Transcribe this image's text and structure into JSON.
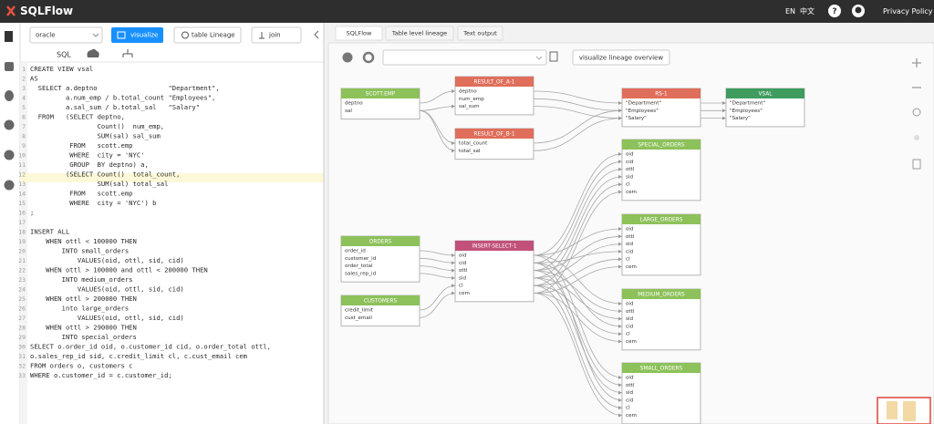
{
  "header": {
    "logo": "SQLFlow",
    "lang_en": "EN",
    "lang_zh": "中文",
    "privacy": "Privacy Policy"
  },
  "toolbar": {
    "db": "oracle",
    "visualize": "visualize",
    "table_lineage": "table Lineage",
    "join": "join",
    "sql_tab": "SQL"
  },
  "editor": {
    "line_numbers": [
      1,
      2,
      3,
      4,
      5,
      6,
      7,
      8,
      9,
      10,
      11,
      12,
      13,
      14,
      15,
      16,
      17,
      18,
      19,
      20,
      21,
      22,
      23,
      24,
      25,
      26,
      27,
      28,
      29,
      30,
      31,
      32,
      33
    ],
    "lines": [
      "CREATE VIEW vsal",
      "AS",
      "  SELECT a.deptno                  \"Department\",",
      "         a.num_emp / b.total_count \"Employees\",",
      "         a.sal_sum / b.total_sal   \"Salary\"",
      "  FROM   (SELECT deptno,",
      "                 Count()  num_emp,",
      "                 SUM(sal) sal_sum",
      "          FROM   scott.emp",
      "          WHERE  city = 'NYC'",
      "          GROUP  BY deptno) a,",
      "         (SELECT Count()  total_count,",
      "                 SUM(sal) total_sal",
      "          FROM   scott.emp",
      "          WHERE  city = 'NYC') b",
      ";",
      null,
      "INSERT ALL",
      "    WHEN ottl < 100000 THEN",
      "        INTO small_orders",
      "            VALUES(oid, ottl, sid, cid)",
      "    WHEN ottl > 100000 and ottl < 200000 THEN",
      "        INTO medium_orders",
      "            VALUES(oid, ottl, sid, cid)",
      "    WHEN ottl > 200000 THEN",
      "        into large_orders",
      "            VALUES(oid, ottl, sid, cid)",
      "    WHEN ottl > 290000 THEN",
      "        INTO special_orders",
      "SELECT o.order_id oid, o.customer_id cid, o.order_total ottl,",
      "o.sales_rep_id sid, c.credit_limit cl, c.cust_email cem",
      "FROM orders o, customers c",
      "WHERE o.customer_id = c.customer_id;"
    ]
  },
  "tabs": [
    "SQLFlow",
    "Table level lineage",
    "Text output"
  ],
  "graph_toolbar": {
    "overview": "visualize lineage overview"
  },
  "nodes": [
    {
      "label": "SCOTT.EMP",
      "columns": [
        "deptno",
        "sal"
      ]
    },
    {
      "label": "RESULT_OF_A-1",
      "columns": [
        "deptno",
        "num_emp",
        "sal_sum"
      ]
    },
    {
      "label": "RESULT_OF_B-1",
      "columns": [
        "total_count",
        "total_sal"
      ]
    },
    {
      "label": "RS-1",
      "columns": [
        "\"Department\"",
        "\"Employees\"",
        "\"Salary\""
      ]
    },
    {
      "label": "VSAL",
      "columns": [
        "\"Department\"",
        "\"Employees\"",
        "\"Salary\""
      ]
    },
    {
      "label": "SPECIAL_ORDERS",
      "columns": [
        "oid",
        "cid",
        "ottl",
        "sid",
        "cl",
        "cem"
      ]
    },
    {
      "label": "LARGE_ORDERS",
      "columns": [
        "oid",
        "ottl",
        "sid",
        "cid",
        "cl",
        "cem"
      ]
    },
    {
      "label": "MEDIUM_ORDERS",
      "columns": [
        "oid",
        "ottl",
        "sid",
        "cid",
        "cl",
        "cem"
      ]
    },
    {
      "label": "SMALL_ORDERS",
      "columns": [
        "oid",
        "ottl",
        "sid",
        "cid",
        "cl",
        "cem"
      ]
    },
    {
      "label": "ORDERS",
      "columns": [
        "order_id",
        "customer_id",
        "order_total",
        "sales_rep_id"
      ]
    },
    {
      "label": "CUSTOMERS",
      "columns": [
        "credit_limit",
        "cust_email"
      ]
    },
    {
      "label": "INSERT-SELECT-1",
      "columns": [
        "oid",
        "cid",
        "ottl",
        "sid",
        "cl",
        "cem"
      ]
    }
  ]
}
